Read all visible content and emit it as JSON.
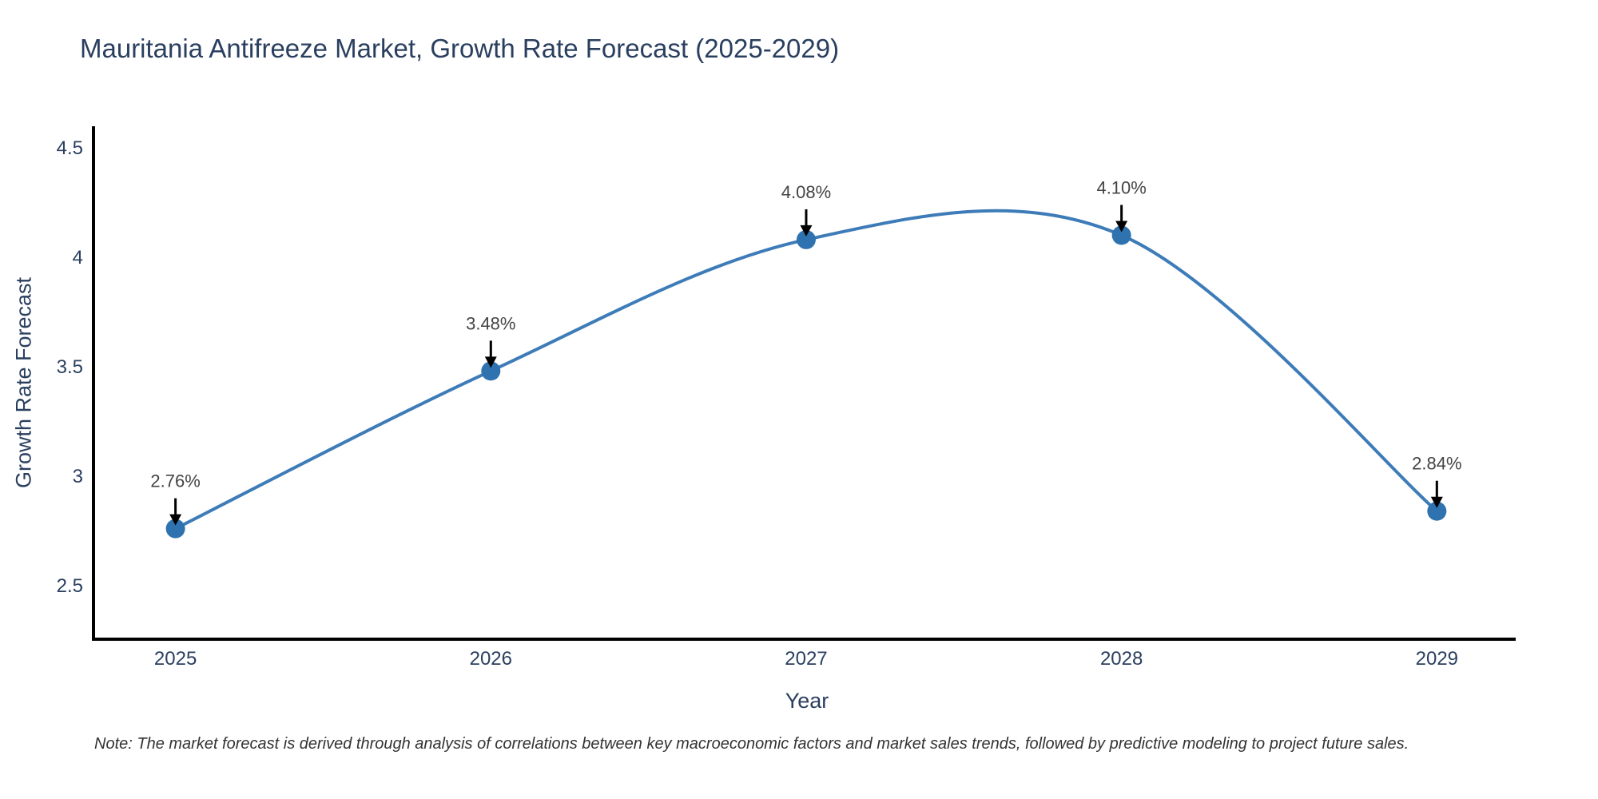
{
  "chart_data": {
    "type": "line",
    "title": "Mauritania Antifreeze Market, Growth Rate Forecast (2025-2029)",
    "xlabel": "Year",
    "ylabel": "Growth Rate Forecast",
    "x": [
      2025,
      2026,
      2027,
      2028,
      2029
    ],
    "series": [
      {
        "name": "Growth Rate Forecast",
        "values": [
          2.76,
          3.48,
          4.08,
          4.1,
          2.84
        ]
      }
    ],
    "point_labels": [
      "2.76%",
      "3.48%",
      "4.08%",
      "4.10%",
      "2.84%"
    ],
    "xtick_labels": [
      "2025",
      "2026",
      "2027",
      "2028",
      "2029"
    ],
    "ytick_values": [
      2.5,
      3,
      3.5,
      4,
      4.5
    ],
    "ytick_labels": [
      "2.5",
      "3",
      "3.5",
      "4",
      "4.5"
    ],
    "xlim": [
      2024.74,
      2029.25
    ],
    "ylim": [
      2.255,
      4.598
    ],
    "line_shape": "spline",
    "grid": false,
    "legend": "none",
    "annotations_have_arrows": true,
    "colors": {
      "line": "#3d7cb8",
      "marker": "#2f72b0",
      "axis": "#000000",
      "title": "#2a3f5f",
      "tick": "#2a3f5f",
      "axis_title": "#2a3f5f",
      "annotation": "#444444",
      "arrow": "#000000",
      "note": "#333333",
      "background": "#ffffff"
    }
  },
  "note": {
    "text": "Note: The market forecast is derived through analysis of correlations between key macroeconomic factors and market sales trends, followed by predictive modeling to project future sales."
  }
}
